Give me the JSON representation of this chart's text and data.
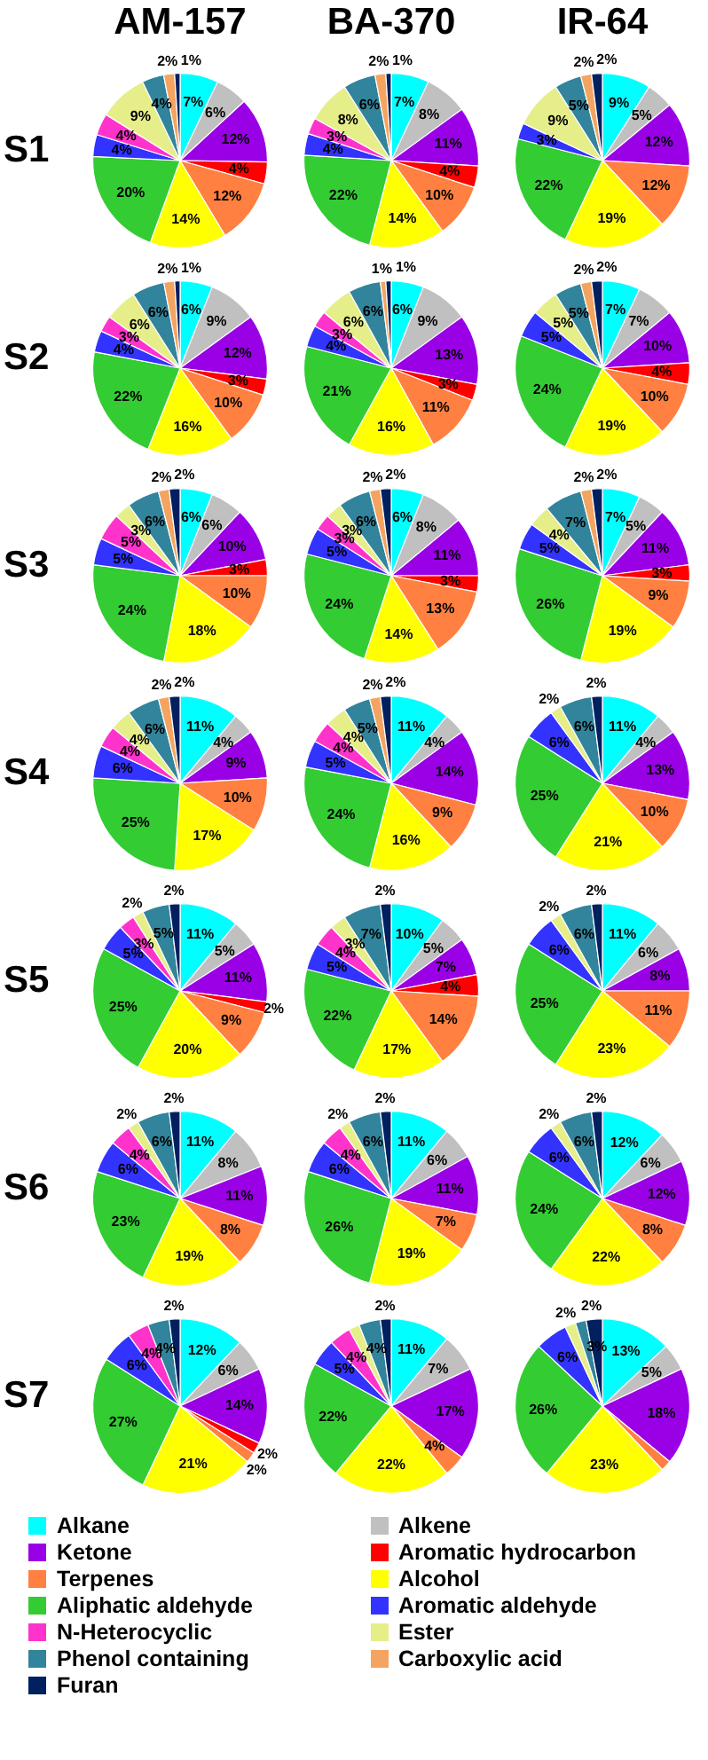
{
  "chart_data": [
    {
      "type": "pie",
      "title": "AM-157",
      "ylabel": "S1",
      "legend": "bottom",
      "categories": [
        "Alkane",
        "Alkene",
        "Ketone",
        "Aromatic hydrocarbon",
        "Terpenes",
        "Alcohol",
        "Aliphatic aldehyde",
        "Aromatic aldehyde",
        "N-Heterocyclic",
        "Ester",
        "Phenol containing",
        "Carboxylic acid",
        "Furan"
      ],
      "colors": [
        "#00ffff",
        "#c0c0c0",
        "#9900e6",
        "#ff0000",
        "#ff8040",
        "#ffff00",
        "#33cc33",
        "#3333ff",
        "#ff33cc",
        "#e6ee8a",
        "#31849b",
        "#f4a460",
        "#002060"
      ],
      "values": [
        7,
        6,
        12,
        4,
        12,
        14,
        20,
        4,
        4,
        9,
        4,
        2,
        1
      ],
      "value_labels": [
        "7%",
        "6%",
        "12%",
        "4%",
        "12%",
        "14%",
        "20%",
        "4%",
        "4%",
        "9%",
        "4%",
        "2%",
        "1%"
      ]
    },
    {
      "type": "pie",
      "title": "BA-370",
      "categories": [
        null,
        null,
        null,
        null,
        null,
        null,
        null,
        null,
        null,
        null,
        null,
        null,
        null
      ],
      "colors": [
        "#00ffff",
        "#c0c0c0",
        "#9900e6",
        "#ff0000",
        "#ff8040",
        "#ffff00",
        "#33cc33",
        "#3333ff",
        "#ff33cc",
        "#e6ee8a",
        "#31849b",
        "#f4a460",
        "#002060"
      ],
      "values": [
        7,
        8,
        11,
        4,
        10,
        14,
        22,
        4,
        3,
        8,
        6,
        2,
        1
      ],
      "value_labels": [
        "7%",
        "8%",
        "11%",
        "4%",
        "10%",
        "14%",
        "22%",
        "4%",
        "3%",
        "8%",
        "6%",
        "2%",
        "1%"
      ]
    },
    {
      "type": "pie",
      "title": "IR-64",
      "categories": [
        null,
        null,
        null,
        null,
        null,
        null,
        null,
        null,
        null,
        null,
        null,
        null,
        null
      ],
      "colors": [
        "#00ffff",
        "#c0c0c0",
        "#9900e6",
        "#ff0000",
        "#ff8040",
        "#ffff00",
        "#33cc33",
        "#3333ff",
        "#ff33cc",
        "#e6ee8a",
        "#31849b",
        "#f4a460",
        "#002060"
      ],
      "values": [
        9,
        5,
        12,
        0,
        12,
        19,
        22,
        3,
        0,
        9,
        5,
        2,
        2
      ],
      "value_labels": [
        "9%",
        "5%",
        "12%",
        null,
        "12%",
        "19%",
        "22%",
        "3%",
        null,
        "9%",
        "5%",
        "2%",
        "2%"
      ]
    },
    {
      "type": "pie",
      "ylabel": "S2",
      "categories": [
        null,
        null,
        null,
        null,
        null,
        null,
        null,
        null,
        null,
        null,
        null,
        null,
        null
      ],
      "colors": [
        "#00ffff",
        "#c0c0c0",
        "#9900e6",
        "#ff0000",
        "#ff8040",
        "#ffff00",
        "#33cc33",
        "#3333ff",
        "#ff33cc",
        "#e6ee8a",
        "#31849b",
        "#f4a460",
        "#002060"
      ],
      "values": [
        6,
        9,
        12,
        3,
        10,
        16,
        22,
        4,
        3,
        6,
        6,
        2,
        1
      ],
      "value_labels": [
        "6%",
        "9%",
        "12%",
        "3%",
        "10%",
        "16%",
        "22%",
        "4%",
        "3%",
        "6%",
        "6%",
        "2%",
        "1%"
      ]
    },
    {
      "type": "pie",
      "categories": [
        null,
        null,
        null,
        null,
        null,
        null,
        null,
        null,
        null,
        null,
        null,
        null,
        null
      ],
      "colors": [
        "#00ffff",
        "#c0c0c0",
        "#9900e6",
        "#ff0000",
        "#ff8040",
        "#ffff00",
        "#33cc33",
        "#3333ff",
        "#ff33cc",
        "#e6ee8a",
        "#31849b",
        "#f4a460",
        "#002060"
      ],
      "values": [
        6,
        9,
        13,
        3,
        11,
        16,
        21,
        4,
        3,
        6,
        6,
        1,
        1
      ],
      "value_labels": [
        "6%",
        "9%",
        "13%",
        "3%",
        "11%",
        "16%",
        "21%",
        "4%",
        "3%",
        "6%",
        "6%",
        "1%",
        "1%"
      ]
    },
    {
      "type": "pie",
      "categories": [
        null,
        null,
        null,
        null,
        null,
        null,
        null,
        null,
        null,
        null,
        null,
        null,
        null
      ],
      "colors": [
        "#00ffff",
        "#c0c0c0",
        "#9900e6",
        "#ff0000",
        "#ff8040",
        "#ffff00",
        "#33cc33",
        "#3333ff",
        "#ff33cc",
        "#e6ee8a",
        "#31849b",
        "#f4a460",
        "#002060"
      ],
      "values": [
        7,
        7,
        10,
        4,
        10,
        19,
        24,
        5,
        0,
        5,
        5,
        2,
        2
      ],
      "value_labels": [
        "7%",
        "7%",
        "10%",
        "4%",
        "10%",
        "19%",
        "24%",
        "5%",
        null,
        "5%",
        "5%",
        "2%",
        "2%"
      ]
    },
    {
      "type": "pie",
      "ylabel": "S3",
      "categories": [
        null,
        null,
        null,
        null,
        null,
        null,
        null,
        null,
        null,
        null,
        null,
        null,
        null
      ],
      "colors": [
        "#00ffff",
        "#c0c0c0",
        "#9900e6",
        "#ff0000",
        "#ff8040",
        "#ffff00",
        "#33cc33",
        "#3333ff",
        "#ff33cc",
        "#e6ee8a",
        "#31849b",
        "#f4a460",
        "#002060"
      ],
      "values": [
        6,
        6,
        10,
        3,
        10,
        18,
        24,
        5,
        5,
        3,
        6,
        2,
        2
      ],
      "value_labels": [
        "6%",
        "6%",
        "10%",
        "3%",
        "10%",
        "18%",
        "24%",
        "5%",
        "5%",
        "3%",
        "6%",
        "2%",
        "2%"
      ]
    },
    {
      "type": "pie",
      "categories": [
        null,
        null,
        null,
        null,
        null,
        null,
        null,
        null,
        null,
        null,
        null,
        null,
        null
      ],
      "colors": [
        "#00ffff",
        "#c0c0c0",
        "#9900e6",
        "#ff0000",
        "#ff8040",
        "#ffff00",
        "#33cc33",
        "#3333ff",
        "#ff33cc",
        "#e6ee8a",
        "#31849b",
        "#f4a460",
        "#002060"
      ],
      "values": [
        6,
        8,
        11,
        3,
        13,
        14,
        24,
        5,
        3,
        3,
        6,
        2,
        2
      ],
      "value_labels": [
        "6%",
        "8%",
        "11%",
        "3%",
        "13%",
        "14%",
        "24%",
        "5%",
        "3%",
        "3%",
        "6%",
        "2%",
        "2%"
      ]
    },
    {
      "type": "pie",
      "categories": [
        null,
        null,
        null,
        null,
        null,
        null,
        null,
        null,
        null,
        null,
        null,
        null,
        null
      ],
      "colors": [
        "#00ffff",
        "#c0c0c0",
        "#9900e6",
        "#ff0000",
        "#ff8040",
        "#ffff00",
        "#33cc33",
        "#3333ff",
        "#ff33cc",
        "#e6ee8a",
        "#31849b",
        "#f4a460",
        "#002060"
      ],
      "values": [
        7,
        5,
        11,
        3,
        9,
        19,
        26,
        5,
        0,
        4,
        7,
        2,
        2
      ],
      "value_labels": [
        "7%",
        "5%",
        "11%",
        "3%",
        "9%",
        "19%",
        "26%",
        "5%",
        null,
        "4%",
        "7%",
        "2%",
        "2%"
      ]
    },
    {
      "type": "pie",
      "ylabel": "S4",
      "categories": [
        null,
        null,
        null,
        null,
        null,
        null,
        null,
        null,
        null,
        null,
        null,
        null,
        null
      ],
      "colors": [
        "#00ffff",
        "#c0c0c0",
        "#9900e6",
        "#ff0000",
        "#ff8040",
        "#ffff00",
        "#33cc33",
        "#3333ff",
        "#ff33cc",
        "#e6ee8a",
        "#31849b",
        "#f4a460",
        "#002060"
      ],
      "values": [
        11,
        4,
        9,
        0,
        10,
        17,
        25,
        6,
        4,
        4,
        6,
        2,
        2
      ],
      "value_labels": [
        "11%",
        "4%",
        "9%",
        null,
        "10%",
        "17%",
        "25%",
        "6%",
        "4%",
        "4%",
        "6%",
        "2%",
        "2%"
      ]
    },
    {
      "type": "pie",
      "categories": [
        null,
        null,
        null,
        null,
        null,
        null,
        null,
        null,
        null,
        null,
        null,
        null,
        null
      ],
      "colors": [
        "#00ffff",
        "#c0c0c0",
        "#9900e6",
        "#ff0000",
        "#ff8040",
        "#ffff00",
        "#33cc33",
        "#3333ff",
        "#ff33cc",
        "#e6ee8a",
        "#31849b",
        "#f4a460",
        "#002060"
      ],
      "values": [
        11,
        4,
        14,
        0,
        9,
        16,
        24,
        5,
        4,
        4,
        5,
        2,
        2
      ],
      "value_labels": [
        "11%",
        "4%",
        "14%",
        null,
        "9%",
        "16%",
        "24%",
        "5%",
        "4%",
        "4%",
        "5%",
        "2%",
        "2%"
      ]
    },
    {
      "type": "pie",
      "categories": [
        null,
        null,
        null,
        null,
        null,
        null,
        null,
        null,
        null,
        null,
        null,
        null,
        null
      ],
      "colors": [
        "#00ffff",
        "#c0c0c0",
        "#9900e6",
        "#ff0000",
        "#ff8040",
        "#ffff00",
        "#33cc33",
        "#3333ff",
        "#ff33cc",
        "#e6ee8a",
        "#31849b",
        "#f4a460",
        "#002060"
      ],
      "values": [
        11,
        4,
        13,
        0,
        10,
        21,
        25,
        6,
        0,
        2,
        6,
        0,
        2
      ],
      "value_labels": [
        "11%",
        "4%",
        "13%",
        null,
        "10%",
        "21%",
        "25%",
        "6%",
        null,
        "2%",
        "6%",
        null,
        "2%"
      ]
    },
    {
      "type": "pie",
      "ylabel": "S5",
      "categories": [
        null,
        null,
        null,
        null,
        null,
        null,
        null,
        null,
        null,
        null,
        null,
        null,
        null
      ],
      "colors": [
        "#00ffff",
        "#c0c0c0",
        "#9900e6",
        "#ff0000",
        "#ff8040",
        "#ffff00",
        "#33cc33",
        "#3333ff",
        "#ff33cc",
        "#e6ee8a",
        "#31849b",
        "#f4a460",
        "#002060"
      ],
      "values": [
        11,
        5,
        11,
        2,
        9,
        20,
        25,
        5,
        3,
        2,
        5,
        0,
        2
      ],
      "value_labels": [
        "11%",
        "5%",
        "11%",
        "2%",
        "9%",
        "20%",
        "25%",
        "5%",
        "3%",
        "2%",
        "5%",
        null,
        "2%"
      ]
    },
    {
      "type": "pie",
      "categories": [
        null,
        null,
        null,
        null,
        null,
        null,
        null,
        null,
        null,
        null,
        null,
        null,
        null
      ],
      "colors": [
        "#00ffff",
        "#c0c0c0",
        "#9900e6",
        "#ff0000",
        "#ff8040",
        "#ffff00",
        "#33cc33",
        "#3333ff",
        "#ff33cc",
        "#e6ee8a",
        "#31849b",
        "#f4a460",
        "#002060"
      ],
      "values": [
        10,
        5,
        7,
        4,
        14,
        17,
        22,
        5,
        4,
        3,
        7,
        0,
        2
      ],
      "value_labels": [
        "10%",
        "5%",
        "7%",
        "4%",
        "14%",
        "17%",
        "22%",
        "5%",
        "4%",
        "3%",
        "7%",
        null,
        "2%"
      ]
    },
    {
      "type": "pie",
      "categories": [
        null,
        null,
        null,
        null,
        null,
        null,
        null,
        null,
        null,
        null,
        null,
        null,
        null
      ],
      "colors": [
        "#00ffff",
        "#c0c0c0",
        "#9900e6",
        "#ff0000",
        "#ff8040",
        "#ffff00",
        "#33cc33",
        "#3333ff",
        "#ff33cc",
        "#e6ee8a",
        "#31849b",
        "#f4a460",
        "#002060"
      ],
      "values": [
        11,
        6,
        8,
        0,
        11,
        23,
        25,
        6,
        0,
        2,
        6,
        0,
        2
      ],
      "value_labels": [
        "11%",
        "6%",
        "8%",
        null,
        "11%",
        "23%",
        "25%",
        "6%",
        null,
        "2%",
        "6%",
        null,
        "2%"
      ]
    },
    {
      "type": "pie",
      "ylabel": "S6",
      "categories": [
        null,
        null,
        null,
        null,
        null,
        null,
        null,
        null,
        null,
        null,
        null,
        null,
        null
      ],
      "colors": [
        "#00ffff",
        "#c0c0c0",
        "#9900e6",
        "#ff0000",
        "#ff8040",
        "#ffff00",
        "#33cc33",
        "#3333ff",
        "#ff33cc",
        "#e6ee8a",
        "#31849b",
        "#f4a460",
        "#002060"
      ],
      "values": [
        11,
        8,
        11,
        0,
        8,
        19,
        23,
        6,
        4,
        2,
        6,
        0,
        2
      ],
      "value_labels": [
        "11%",
        "8%",
        "11%",
        null,
        "8%",
        "19%",
        "23%",
        "6%",
        "4%",
        "2%",
        "6%",
        null,
        "2%"
      ]
    },
    {
      "type": "pie",
      "categories": [
        null,
        null,
        null,
        null,
        null,
        null,
        null,
        null,
        null,
        null,
        null,
        null,
        null
      ],
      "colors": [
        "#00ffff",
        "#c0c0c0",
        "#9900e6",
        "#ff0000",
        "#ff8040",
        "#ffff00",
        "#33cc33",
        "#3333ff",
        "#ff33cc",
        "#e6ee8a",
        "#31849b",
        "#f4a460",
        "#002060"
      ],
      "values": [
        11,
        6,
        11,
        0,
        7,
        19,
        26,
        6,
        4,
        2,
        6,
        0,
        2
      ],
      "value_labels": [
        "11%",
        "6%",
        "11%",
        null,
        "7%",
        "19%",
        "26%",
        "6%",
        "4%",
        "2%",
        "6%",
        null,
        "2%"
      ]
    },
    {
      "type": "pie",
      "categories": [
        null,
        null,
        null,
        null,
        null,
        null,
        null,
        null,
        null,
        null,
        null,
        null,
        null
      ],
      "colors": [
        "#00ffff",
        "#c0c0c0",
        "#9900e6",
        "#ff0000",
        "#ff8040",
        "#ffff00",
        "#33cc33",
        "#3333ff",
        "#ff33cc",
        "#e6ee8a",
        "#31849b",
        "#f4a460",
        "#002060"
      ],
      "values": [
        12,
        6,
        12,
        0,
        8,
        22,
        24,
        6,
        0,
        2,
        6,
        0,
        2
      ],
      "value_labels": [
        "12%",
        "6%",
        "12%",
        null,
        "8%",
        "22%",
        "24%",
        "6%",
        null,
        "2%",
        "6%",
        null,
        "2%"
      ]
    },
    {
      "type": "pie",
      "ylabel": "S7",
      "categories": [
        null,
        null,
        null,
        null,
        null,
        null,
        null,
        null,
        null,
        null,
        null,
        null,
        null
      ],
      "colors": [
        "#00ffff",
        "#c0c0c0",
        "#9900e6",
        "#ff0000",
        "#ff8040",
        "#ffff00",
        "#33cc33",
        "#3333ff",
        "#ff33cc",
        "#e6ee8a",
        "#31849b",
        "#f4a460",
        "#002060"
      ],
      "values": [
        12,
        6,
        14,
        2,
        2,
        21,
        27,
        6,
        4,
        0,
        4,
        0,
        2
      ],
      "value_labels": [
        "12%",
        "6%",
        "14%",
        "2%",
        "2%",
        "21%",
        "27%",
        "6%",
        "4%",
        null,
        "4%",
        null,
        "2%"
      ]
    },
    {
      "type": "pie",
      "categories": [
        null,
        null,
        null,
        null,
        null,
        null,
        null,
        null,
        null,
        null,
        null,
        null,
        null
      ],
      "colors": [
        "#00ffff",
        "#c0c0c0",
        "#9900e6",
        "#ff0000",
        "#ff8040",
        "#ffff00",
        "#33cc33",
        "#3333ff",
        "#ff33cc",
        "#e6ee8a",
        "#31849b",
        "#f4a460",
        "#002060"
      ],
      "values": [
        11,
        7,
        17,
        0,
        4,
        22,
        22,
        5,
        4,
        2,
        4,
        0,
        2
      ],
      "value_labels": [
        "11%",
        "7%",
        "17%",
        null,
        "4%",
        "22%",
        "22%",
        "5%",
        "4%",
        null,
        "4%",
        null,
        "2%"
      ]
    },
    {
      "type": "pie",
      "categories": [
        null,
        null,
        null,
        null,
        null,
        null,
        null,
        null,
        null,
        null,
        null,
        null,
        null
      ],
      "colors": [
        "#00ffff",
        "#c0c0c0",
        "#9900e6",
        "#ff0000",
        "#ff8040",
        "#ffff00",
        "#33cc33",
        "#3333ff",
        "#ff33cc",
        "#e6ee8a",
        "#31849b",
        "#f4a460",
        "#002060"
      ],
      "values": [
        13,
        5,
        18,
        0,
        2,
        23,
        26,
        6,
        0,
        2,
        2,
        0,
        3
      ],
      "value_labels": [
        "13%",
        "5%",
        "18%",
        null,
        null,
        "23%",
        "26%",
        "6%",
        null,
        "2%",
        "2%",
        null,
        "3%"
      ]
    }
  ]
}
